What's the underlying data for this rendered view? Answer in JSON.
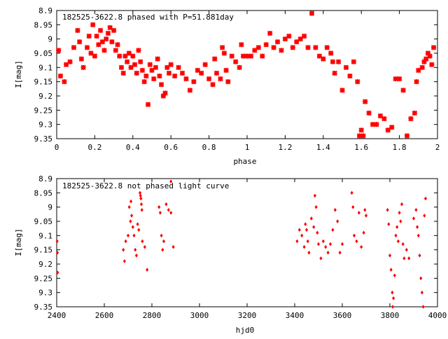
{
  "chart_data": [
    {
      "type": "scatter",
      "title": "182525-3622.8 phased with P=51.881day",
      "xlabel": "phase",
      "ylabel": "I[mag]",
      "xlim": [
        0,
        2
      ],
      "ylim": [
        9.35,
        8.9
      ],
      "y_inverted": true,
      "xticks": [
        "0",
        "0.2",
        "0.4",
        "0.6",
        "0.8",
        "1",
        "1.2",
        "1.4",
        "1.6",
        "1.8",
        "2"
      ],
      "yticks": [
        "8.9",
        "8.95",
        "9",
        "9.05",
        "9.1",
        "9.15",
        "9.2",
        "9.25",
        "9.3",
        "9.35"
      ],
      "marker_color": "#ff0000",
      "marker": "star",
      "points": [
        [
          0.01,
          9.04
        ],
        [
          0.02,
          9.13
        ],
        [
          0.04,
          9.15
        ],
        [
          0.05,
          9.09
        ],
        [
          0.07,
          9.08
        ],
        [
          0.09,
          9.03
        ],
        [
          0.11,
          8.97
        ],
        [
          0.12,
          9.01
        ],
        [
          0.13,
          9.07
        ],
        [
          0.14,
          9.1
        ],
        [
          0.16,
          9.03
        ],
        [
          0.17,
          8.99
        ],
        [
          0.18,
          9.05
        ],
        [
          0.19,
          8.95
        ],
        [
          0.2,
          9.06
        ],
        [
          0.21,
          8.99
        ],
        [
          0.22,
          9.02
        ],
        [
          0.23,
          8.97
        ],
        [
          0.24,
          9.01
        ],
        [
          0.25,
          9.04
        ],
        [
          0.26,
          9.0
        ],
        [
          0.27,
          8.98
        ],
        [
          0.28,
          8.96
        ],
        [
          0.29,
          9.01
        ],
        [
          0.3,
          8.97
        ],
        [
          0.31,
          9.04
        ],
        [
          0.32,
          9.02
        ],
        [
          0.33,
          9.06
        ],
        [
          0.34,
          9.1
        ],
        [
          0.35,
          9.12
        ],
        [
          0.36,
          9.06
        ],
        [
          0.37,
          9.08
        ],
        [
          0.38,
          9.05
        ],
        [
          0.39,
          9.1
        ],
        [
          0.4,
          9.06
        ],
        [
          0.41,
          9.09
        ],
        [
          0.42,
          9.12
        ],
        [
          0.43,
          9.04
        ],
        [
          0.44,
          9.08
        ],
        [
          0.45,
          9.11
        ],
        [
          0.46,
          9.15
        ],
        [
          0.47,
          9.13
        ],
        [
          0.48,
          9.23
        ],
        [
          0.49,
          9.09
        ],
        [
          0.5,
          9.11
        ],
        [
          0.51,
          9.14
        ],
        [
          0.52,
          9.1
        ],
        [
          0.53,
          9.07
        ],
        [
          0.54,
          9.13
        ],
        [
          0.55,
          9.16
        ],
        [
          0.56,
          9.2
        ],
        [
          0.57,
          9.19
        ],
        [
          0.58,
          9.1
        ],
        [
          0.59,
          9.12
        ],
        [
          0.6,
          9.09
        ],
        [
          0.62,
          9.13
        ],
        [
          0.64,
          9.1
        ],
        [
          0.66,
          9.12
        ],
        [
          0.68,
          9.14
        ],
        [
          0.7,
          9.18
        ],
        [
          0.72,
          9.15
        ],
        [
          0.74,
          9.11
        ],
        [
          0.76,
          9.12
        ],
        [
          0.78,
          9.09
        ],
        [
          0.8,
          9.14
        ],
        [
          0.82,
          9.16
        ],
        [
          0.83,
          9.07
        ],
        [
          0.84,
          9.12
        ],
        [
          0.86,
          9.14
        ],
        [
          0.87,
          9.03
        ],
        [
          0.88,
          9.05
        ],
        [
          0.89,
          9.11
        ],
        [
          0.9,
          9.15
        ],
        [
          0.92,
          9.06
        ],
        [
          0.94,
          9.08
        ],
        [
          0.96,
          9.1
        ],
        [
          0.97,
          9.02
        ],
        [
          0.98,
          9.06
        ],
        [
          1.0,
          9.06
        ],
        [
          1.02,
          9.06
        ],
        [
          1.04,
          9.04
        ],
        [
          1.06,
          9.03
        ],
        [
          1.08,
          9.06
        ],
        [
          1.1,
          9.02
        ],
        [
          1.12,
          8.98
        ],
        [
          1.14,
          9.03
        ],
        [
          1.16,
          9.01
        ],
        [
          1.18,
          9.04
        ],
        [
          1.2,
          9.0
        ],
        [
          1.22,
          8.99
        ],
        [
          1.24,
          9.03
        ],
        [
          1.26,
          9.01
        ],
        [
          1.28,
          9.0
        ],
        [
          1.3,
          8.99
        ],
        [
          1.32,
          9.03
        ],
        [
          1.34,
          8.91
        ],
        [
          1.36,
          9.03
        ],
        [
          1.38,
          9.06
        ],
        [
          1.4,
          9.07
        ],
        [
          1.42,
          9.03
        ],
        [
          1.44,
          9.05
        ],
        [
          1.45,
          9.08
        ],
        [
          1.46,
          9.12
        ],
        [
          1.48,
          9.08
        ],
        [
          1.5,
          9.18
        ],
        [
          1.52,
          9.1
        ],
        [
          1.54,
          9.13
        ],
        [
          1.56,
          9.08
        ],
        [
          1.58,
          9.15
        ],
        [
          1.59,
          9.34
        ],
        [
          1.6,
          9.32
        ],
        [
          1.61,
          9.34
        ],
        [
          1.62,
          9.22
        ],
        [
          1.64,
          9.26
        ],
        [
          1.66,
          9.3
        ],
        [
          1.68,
          9.3
        ],
        [
          1.7,
          9.27
        ],
        [
          1.72,
          9.28
        ],
        [
          1.74,
          9.32
        ],
        [
          1.76,
          9.31
        ],
        [
          1.78,
          9.14
        ],
        [
          1.8,
          9.14
        ],
        [
          1.82,
          9.18
        ],
        [
          1.84,
          9.34
        ],
        [
          1.86,
          9.28
        ],
        [
          1.88,
          9.26
        ],
        [
          1.89,
          9.15
        ],
        [
          1.9,
          9.11
        ],
        [
          1.92,
          9.1
        ],
        [
          1.93,
          9.08
        ],
        [
          1.94,
          9.07
        ],
        [
          1.95,
          9.05
        ],
        [
          1.96,
          9.06
        ],
        [
          1.97,
          9.09
        ],
        [
          1.98,
          9.03
        ]
      ]
    },
    {
      "type": "scatter",
      "title": "182525-3622.8 not phased light curve",
      "xlabel": "hjd0",
      "ylabel": "I[mag]",
      "xlim": [
        2400,
        4000
      ],
      "ylim": [
        9.35,
        8.9
      ],
      "y_inverted": true,
      "xticks": [
        "2400",
        "2600",
        "2800",
        "3000",
        "3200",
        "3400",
        "3600",
        "3800",
        "4000"
      ],
      "yticks": [
        "8.9",
        "8.95",
        "9",
        "9.05",
        "9.1",
        "9.15",
        "9.2",
        "9.25",
        "9.3",
        "9.35"
      ],
      "marker_color": "#ff0000",
      "marker": "diamond",
      "points": [
        [
          2402,
          9.12
        ],
        [
          2403,
          9.16
        ],
        [
          2404,
          9.23
        ],
        [
          2680,
          9.15
        ],
        [
          2685,
          9.19
        ],
        [
          2690,
          9.12
        ],
        [
          2700,
          9.1
        ],
        [
          2705,
          9.0
        ],
        [
          2710,
          9.05
        ],
        [
          2712,
          8.98
        ],
        [
          2715,
          9.03
        ],
        [
          2720,
          9.07
        ],
        [
          2725,
          9.1
        ],
        [
          2730,
          9.15
        ],
        [
          2735,
          9.17
        ],
        [
          2740,
          9.06
        ],
        [
          2745,
          9.08
        ],
        [
          2750,
          8.95
        ],
        [
          2752,
          8.96
        ],
        [
          2754,
          8.97
        ],
        [
          2756,
          8.99
        ],
        [
          2758,
          9.01
        ],
        [
          2760,
          9.12
        ],
        [
          2770,
          9.14
        ],
        [
          2780,
          9.22
        ],
        [
          2830,
          9.0
        ],
        [
          2835,
          9.02
        ],
        [
          2840,
          9.1
        ],
        [
          2845,
          9.15
        ],
        [
          2850,
          9.12
        ],
        [
          2860,
          8.99
        ],
        [
          2870,
          9.01
        ],
        [
          2880,
          8.91
        ],
        [
          2880,
          9.02
        ],
        [
          2890,
          9.14
        ],
        [
          3410,
          9.12
        ],
        [
          3420,
          9.08
        ],
        [
          3430,
          9.1
        ],
        [
          3440,
          9.14
        ],
        [
          3445,
          9.06
        ],
        [
          3450,
          9.08
        ],
        [
          3455,
          9.12
        ],
        [
          3460,
          9.16
        ],
        [
          3470,
          9.04
        ],
        [
          3480,
          9.07
        ],
        [
          3485,
          8.96
        ],
        [
          3490,
          9.0
        ],
        [
          3495,
          9.09
        ],
        [
          3500,
          9.13
        ],
        [
          3510,
          9.18
        ],
        [
          3520,
          9.12
        ],
        [
          3530,
          9.14
        ],
        [
          3540,
          9.16
        ],
        [
          3550,
          9.13
        ],
        [
          3560,
          9.08
        ],
        [
          3570,
          9.01
        ],
        [
          3580,
          9.05
        ],
        [
          3590,
          9.16
        ],
        [
          3600,
          9.13
        ],
        [
          3640,
          8.95
        ],
        [
          3645,
          9.0
        ],
        [
          3650,
          9.1
        ],
        [
          3660,
          9.12
        ],
        [
          3670,
          9.02
        ],
        [
          3680,
          9.14
        ],
        [
          3690,
          9.09
        ],
        [
          3695,
          9.01
        ],
        [
          3700,
          9.03
        ],
        [
          3790,
          9.01
        ],
        [
          3795,
          9.06
        ],
        [
          3800,
          9.17
        ],
        [
          3805,
          9.22
        ],
        [
          3810,
          9.3
        ],
        [
          3812,
          9.35
        ],
        [
          3815,
          9.32
        ],
        [
          3820,
          9.24
        ],
        [
          3825,
          9.1
        ],
        [
          3830,
          9.07
        ],
        [
          3835,
          9.12
        ],
        [
          3840,
          9.02
        ],
        [
          3845,
          9.05
        ],
        [
          3850,
          8.99
        ],
        [
          3855,
          9.13
        ],
        [
          3860,
          9.18
        ],
        [
          3870,
          9.15
        ],
        [
          3880,
          9.18
        ],
        [
          3900,
          9.04
        ],
        [
          3910,
          9.01
        ],
        [
          3915,
          9.07
        ],
        [
          3920,
          9.1
        ],
        [
          3925,
          9.17
        ],
        [
          3930,
          9.25
        ],
        [
          3935,
          9.3
        ],
        [
          3940,
          9.35
        ],
        [
          3945,
          9.03
        ],
        [
          3950,
          8.97
        ]
      ]
    }
  ]
}
